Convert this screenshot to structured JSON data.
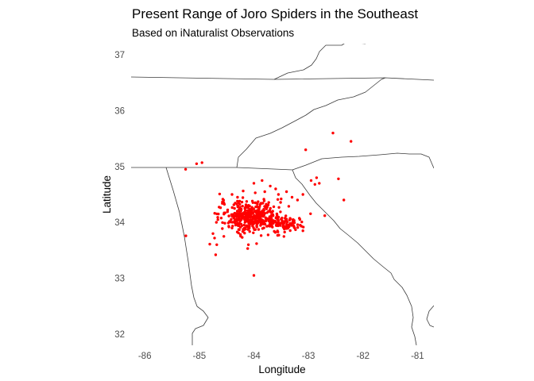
{
  "chart_data": {
    "type": "scatter",
    "title": "Present Range of Joro Spiders in the Southeast",
    "subtitle": "Based on iNaturalist Observations",
    "xlabel": "Longitude",
    "ylabel": "Latitude",
    "xlim": [
      -86.25,
      -80.7
    ],
    "ylim": [
      31.8,
      37.2
    ],
    "x_ticks": [
      -86,
      -85,
      -84,
      -83,
      -82,
      -81
    ],
    "y_ticks": [
      32,
      33,
      34,
      35,
      36,
      37
    ],
    "x_tick_labels": [
      "-86",
      "-85",
      "-84",
      "-83",
      "-82",
      "-81"
    ],
    "y_tick_labels": [
      "32",
      "33",
      "34",
      "35",
      "36",
      "37"
    ],
    "grid": false,
    "point_color": "#ff0000",
    "line_color": "#3a3a3a",
    "cluster": {
      "center": [
        -84.05,
        34.1
      ],
      "spread": [
        0.28,
        0.14
      ],
      "count": 420
    },
    "east_cluster": {
      "center": [
        -83.45,
        33.97
      ],
      "spread": [
        0.16,
        0.07
      ],
      "count": 90
    },
    "scattered_points": [
      [
        -85.25,
        34.95
      ],
      [
        -85.05,
        35.05
      ],
      [
        -84.95,
        35.07
      ],
      [
        -84.75,
        33.8
      ],
      [
        -84.72,
        33.72
      ],
      [
        -84.7,
        33.42
      ],
      [
        -84.68,
        33.6
      ],
      [
        -84.66,
        34.05
      ],
      [
        -84.65,
        34.15
      ],
      [
        -84.0,
        34.7
      ],
      [
        -83.85,
        34.75
      ],
      [
        -83.6,
        34.6
      ],
      [
        -83.4,
        34.55
      ],
      [
        -83.3,
        34.45
      ],
      [
        -83.2,
        34.4
      ],
      [
        -83.1,
        34.5
      ],
      [
        -83.05,
        35.3
      ],
      [
        -82.95,
        34.75
      ],
      [
        -82.88,
        34.68
      ],
      [
        -82.85,
        34.8
      ],
      [
        -82.8,
        34.7
      ],
      [
        -82.7,
        34.12
      ],
      [
        -82.55,
        35.6
      ],
      [
        -82.45,
        34.78
      ],
      [
        -82.35,
        34.4
      ],
      [
        -82.22,
        35.45
      ],
      [
        -84.0,
        33.05
      ],
      [
        -84.1,
        33.6
      ],
      [
        -83.95,
        33.62
      ],
      [
        -83.8,
        34.55
      ],
      [
        -83.7,
        34.65
      ],
      [
        -84.3,
        34.45
      ],
      [
        -84.4,
        34.5
      ],
      [
        -83.25,
        33.9
      ],
      [
        -83.15,
        33.95
      ],
      [
        -83.1,
        33.85
      ],
      [
        -84.55,
        33.75
      ],
      [
        -84.55,
        34.35
      ],
      [
        -83.5,
        34.42
      ],
      [
        -83.55,
        34.5
      ]
    ]
  }
}
